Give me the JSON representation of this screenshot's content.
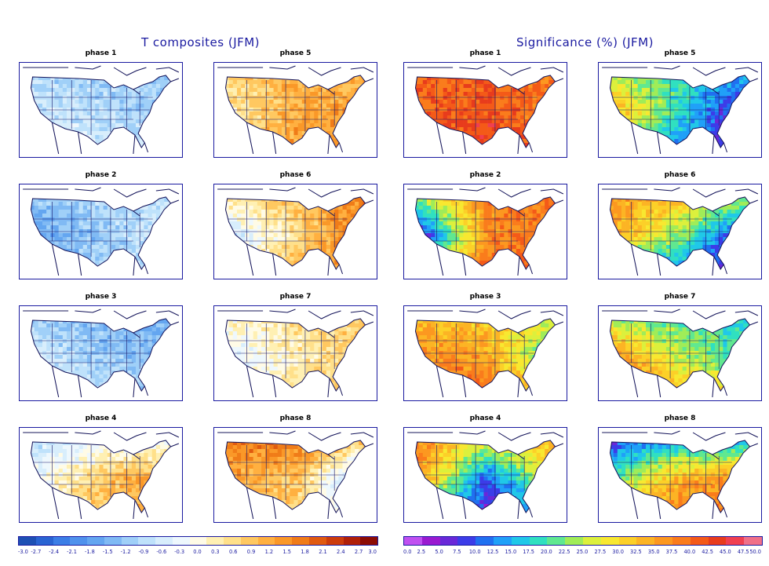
{
  "titles": {
    "left": "T composites (JFM)",
    "right": "Significance (%) (JFM)"
  },
  "chart_data": [
    {
      "type": "heatmap",
      "title": "T composites (JFM)",
      "panels": [
        {
          "label": "phase 1",
          "pattern": {
            "west": -0.6,
            "center": -0.9,
            "east": -1.2,
            "south": -0.3,
            "north": -1.2
          }
        },
        {
          "label": "phase 5",
          "pattern": {
            "west": 0.3,
            "center": 1.2,
            "east": 1.5,
            "south": 1.5,
            "north": 0.9
          }
        },
        {
          "label": "phase 2",
          "pattern": {
            "west": -1.8,
            "center": -1.2,
            "east": -0.6,
            "south": -0.9,
            "north": -0.9
          }
        },
        {
          "label": "phase 6",
          "pattern": {
            "west": -0.9,
            "center": 0.6,
            "east": 2.1,
            "south": 1.5,
            "north": 1.2
          }
        },
        {
          "label": "phase 3",
          "pattern": {
            "west": -0.6,
            "center": -1.2,
            "east": -1.5,
            "south": -0.6,
            "north": -1.5
          }
        },
        {
          "label": "phase 7",
          "pattern": {
            "west": -0.6,
            "center": 0.3,
            "east": 0.9,
            "south": 0.6,
            "north": 0.6
          }
        },
        {
          "label": "phase 4",
          "pattern": {
            "west": -0.3,
            "center": 0.9,
            "east": 1.5,
            "south": 0.9,
            "north": -1.2
          }
        },
        {
          "label": "phase 8",
          "pattern": {
            "west": 1.2,
            "center": 0.9,
            "east": -1.5,
            "south": 0.6,
            "north": 2.1
          }
        }
      ],
      "colorbar": {
        "ticks": [
          "-3.0",
          "-2.7",
          "-2.4",
          "-2.1",
          "-1.8",
          "-1.5",
          "-1.2",
          "-0.9",
          "-0.6",
          "-0.3",
          "0.0",
          "0.3",
          "0.6",
          "0.9",
          "1.2",
          "1.5",
          "1.8",
          "2.1",
          "2.4",
          "2.7",
          "3.0"
        ],
        "range": [
          -3.0,
          3.0
        ],
        "colors": [
          "#1e50b4",
          "#2a64d2",
          "#3c7ee6",
          "#5092ec",
          "#64a6f0",
          "#80baf4",
          "#a0d0f8",
          "#bfe2fb",
          "#d8eefc",
          "#eef8fd",
          "#fffbe6",
          "#fff0b3",
          "#ffe08a",
          "#ffc860",
          "#ffb040",
          "#fa9828",
          "#f07c18",
          "#e05a10",
          "#cc3c0c",
          "#b02008",
          "#8c0c04"
        ]
      }
    },
    {
      "type": "heatmap",
      "title": "Significance (%) (JFM)",
      "panels": [
        {
          "label": "phase 1",
          "pattern": {
            "west": 40,
            "center": 42.5,
            "east": 37.5,
            "south": 45,
            "north": 40
          }
        },
        {
          "label": "phase 5",
          "pattern": {
            "west": 35,
            "center": 17.5,
            "east": 2.5,
            "south": 5,
            "north": 20
          }
        },
        {
          "label": "phase 2",
          "pattern": {
            "west": 2.5,
            "center": 37.5,
            "east": 40,
            "south": 42.5,
            "north": 37.5
          }
        },
        {
          "label": "phase 6",
          "pattern": {
            "west": 35,
            "center": 22.5,
            "east": 2.5,
            "south": 2.5,
            "north": 37.5
          }
        },
        {
          "label": "phase 3",
          "pattern": {
            "west": 37.5,
            "center": 35,
            "east": 17.5,
            "south": 45,
            "north": 30
          }
        },
        {
          "label": "phase 7",
          "pattern": {
            "west": 37.5,
            "center": 25,
            "east": 17.5,
            "south": 40,
            "north": 17.5
          }
        },
        {
          "label": "phase 4",
          "pattern": {
            "west": 37.5,
            "center": 10,
            "east": 30,
            "south": 2.5,
            "north": 37.5
          }
        },
        {
          "label": "phase 8",
          "pattern": {
            "west": 20,
            "center": 35,
            "east": 37.5,
            "south": 40,
            "north": 2.5
          }
        }
      ],
      "colorbar": {
        "ticks": [
          "0.0",
          "2.5",
          "5.0",
          "7.5",
          "10.0",
          "12.5",
          "15.0",
          "17.5",
          "20.0",
          "22.5",
          "25.0",
          "27.5",
          "30.0",
          "32.5",
          "35.0",
          "37.5",
          "40.0",
          "42.5",
          "45.0",
          "47.5",
          "50.0"
        ],
        "range": [
          0,
          50
        ],
        "colors": [
          "#c050f0",
          "#9a1ad0",
          "#6a28d8",
          "#3c3ce8",
          "#2070f0",
          "#20a0f8",
          "#20c8e8",
          "#30e0c0",
          "#60e890",
          "#a0ec58",
          "#dcf03c",
          "#f8e830",
          "#fcd028",
          "#fcb424",
          "#fc9820",
          "#fa7c1c",
          "#f45a18",
          "#e83c1c",
          "#f04050",
          "#f07088"
        ]
      }
    }
  ]
}
